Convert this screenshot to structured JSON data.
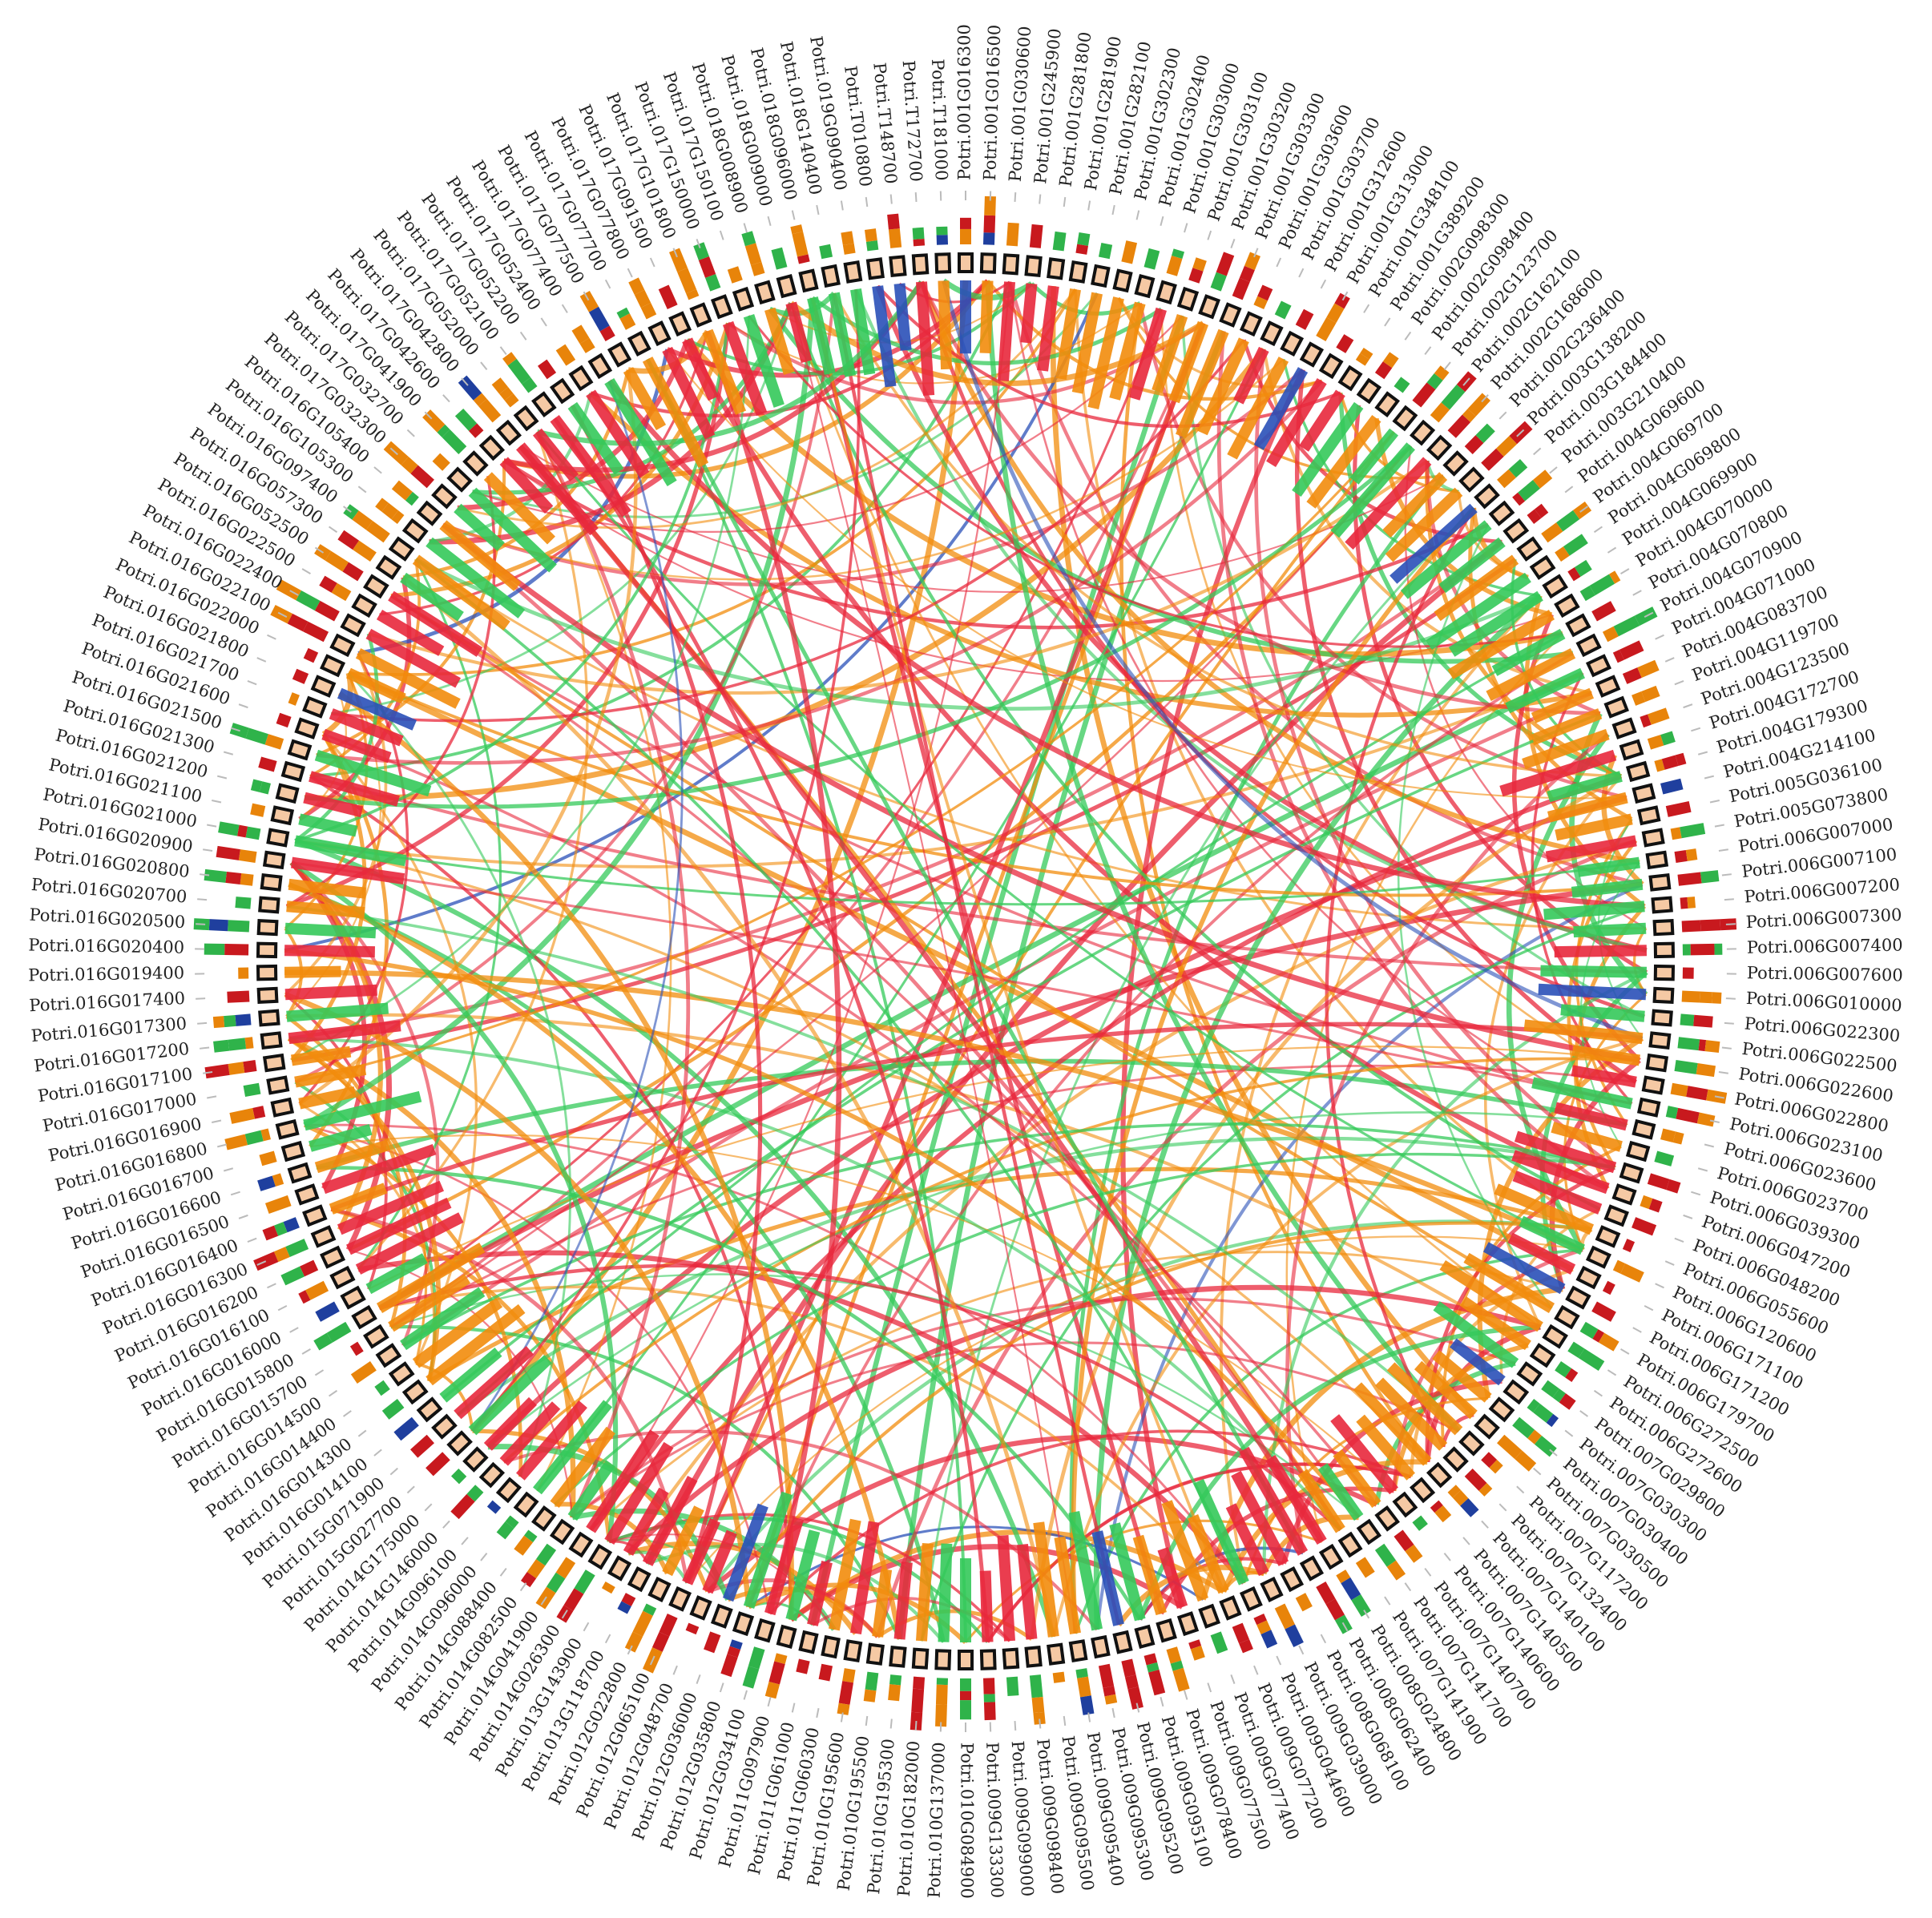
{
  "labels": [
    "Potri.001G016300",
    "Potri.001G016500",
    "Potri.001G030600",
    "Potri.001G245900",
    "Potri.001G281800",
    "Potri.001G281900",
    "Potri.001G282100",
    "Potri.001G302300",
    "Potri.001G302400",
    "Potri.001G303000",
    "Potri.001G303100",
    "Potri.001G303200",
    "Potri.001G303300",
    "Potri.001G303600",
    "Potri.001G303700",
    "Potri.001G312600",
    "Potri.001G313000",
    "Potri.001G348100",
    "Potri.001G389200",
    "Potri.002G098300",
    "Potri.002G098400",
    "Potri.002G123700",
    "Potri.002G162100",
    "Potri.002G168600",
    "Potri.002G236400",
    "Potri.003G138200",
    "Potri.003G184400",
    "Potri.003G210400",
    "Potri.004G069600",
    "Potri.004G069700",
    "Potri.004G069800",
    "Potri.004G069900",
    "Potri.004G070000",
    "Potri.004G070800",
    "Potri.004G070900",
    "Potri.004G071000",
    "Potri.004G083700",
    "Potri.004G119700",
    "Potri.004G123500",
    "Potri.004G172700",
    "Potri.004G179300",
    "Potri.004G214100",
    "Potri.005G036100",
    "Potri.005G073800",
    "Potri.006G007000",
    "Potri.006G007100",
    "Potri.006G007200",
    "Potri.006G007300",
    "Potri.006G007400",
    "Potri.006G007600",
    "Potri.006G010000",
    "Potri.006G022300",
    "Potri.006G022500",
    "Potri.006G022600",
    "Potri.006G022800",
    "Potri.006G023100",
    "Potri.006G023600",
    "Potri.006G023700",
    "Potri.006G039300",
    "Potri.006G047200",
    "Potri.006G048200",
    "Potri.006G055600",
    "Potri.006G120600",
    "Potri.006G171100",
    "Potri.006G171200",
    "Potri.006G179700",
    "Potri.006G272500",
    "Potri.006G272600",
    "Potri.007G029800",
    "Potri.007G030300",
    "Potri.007G030400",
    "Potri.007G030500",
    "Potri.007G117200",
    "Potri.007G132400",
    "Potri.007G140100",
    "Potri.007G140500",
    "Potri.007G140600",
    "Potri.007G140700",
    "Potri.007G141700",
    "Potri.007G141900",
    "Potri.008G024800",
    "Potri.008G062400",
    "Potri.008G068100",
    "Potri.009G039000",
    "Potri.009G044600",
    "Potri.009G077200",
    "Potri.009G077400",
    "Potri.009G077500",
    "Potri.009G078400",
    "Potri.009G095100",
    "Potri.009G095200",
    "Potri.009G095300",
    "Potri.009G095400",
    "Potri.009G095500",
    "Potri.009G098400",
    "Potri.009G099000",
    "Potri.009G133300",
    "Potri.010G084900",
    "Potri.010G137000",
    "Potri.010G182000",
    "Potri.010G195300",
    "Potri.010G195500",
    "Potri.010G195600",
    "Potri.011G060300",
    "Potri.011G061000",
    "Potri.011G097900",
    "Potri.012G034100",
    "Potri.012G035800",
    "Potri.012G036000",
    "Potri.012G048700",
    "Potri.012G065100",
    "Potri.012G022800",
    "Potri.013G118700",
    "Potri.013G143900",
    "Potri.014G026300",
    "Potri.014G041900",
    "Potri.014G082500",
    "Potri.014G088400",
    "Potri.014G096000",
    "Potri.014G096100",
    "Potri.014G146000",
    "Potri.014G175000",
    "Potri.015G027700",
    "Potri.015G071900",
    "Potri.016G014100",
    "Potri.016G014300",
    "Potri.016G014400",
    "Potri.016G014500",
    "Potri.016G015700",
    "Potri.016G015800",
    "Potri.016G016000",
    "Potri.016G016100",
    "Potri.016G016200",
    "Potri.016G016300",
    "Potri.016G016400",
    "Potri.016G016500",
    "Potri.016G016600",
    "Potri.016G016700",
    "Potri.016G016800",
    "Potri.016G016900",
    "Potri.016G017000",
    "Potri.016G017100",
    "Potri.016G017200",
    "Potri.016G017300",
    "Potri.016G017400",
    "Potri.016G019400",
    "Potri.016G020400",
    "Potri.016G020500",
    "Potri.016G020700",
    "Potri.016G020800",
    "Potri.016G020900",
    "Potri.016G021000",
    "Potri.016G021100",
    "Potri.016G021200",
    "Potri.016G021300",
    "Potri.016G021500",
    "Potri.016G021600",
    "Potri.016G021700",
    "Potri.016G021800",
    "Potri.016G022000",
    "Potri.016G022100",
    "Potri.016G022400",
    "Potri.016G022500",
    "Potri.016G052500",
    "Potri.016G057300",
    "Potri.016G097400",
    "Potri.016G105300",
    "Potri.016G105400",
    "Potri.017G032300",
    "Potri.017G032700",
    "Potri.017G041900",
    "Potri.017G042600",
    "Potri.017G042800",
    "Potri.017G052000",
    "Potri.017G052100",
    "Potri.017G052200",
    "Potri.017G052400",
    "Potri.017G077400",
    "Potri.017G077500",
    "Potri.017G077700",
    "Potri.017G077800",
    "Potri.017G091500",
    "Potri.017G101800",
    "Potri.017G150000",
    "Potri.017G150100",
    "Potri.018G008900",
    "Potri.018G009000",
    "Potri.018G096000",
    "Potri.018G140400",
    "Potri.019G090400",
    "Potri.T010800",
    "Potri.T148700",
    "Potri.T172700",
    "Potri.T181000"
  ]
}
